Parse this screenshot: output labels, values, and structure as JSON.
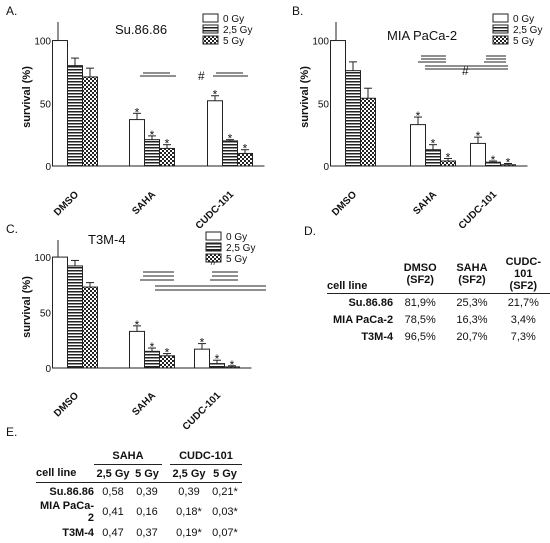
{
  "letters": {
    "a": "A.",
    "b": "B.",
    "c": "C.",
    "d": "D.",
    "e": "E."
  },
  "patterns": {
    "p0": "solid white",
    "p1": "horizontal stripes",
    "p2": "checkered"
  },
  "chart_data": [
    {
      "type": "bar",
      "title": "Su.86.86",
      "ylabel": "survival (%)",
      "xlabel": "",
      "ylim": [
        0,
        110
      ],
      "yticks": [
        "0",
        "50",
        "100"
      ],
      "categories": [
        "DMSO",
        "SAHA",
        "CUDC-101"
      ],
      "series": [
        {
          "name": "0 Gy",
          "values": [
            100,
            37,
            52
          ],
          "errors": [
            0,
            5,
            4
          ]
        },
        {
          "name": "2,5 Gy",
          "values": [
            80,
            21,
            20
          ],
          "errors": [
            6,
            3,
            1
          ]
        },
        {
          "name": "5 Gy",
          "values": [
            71,
            14,
            10
          ],
          "errors": [
            7,
            3,
            3
          ]
        }
      ],
      "stars": [
        {
          "cat": 1,
          "series": 0,
          "text": "*"
        },
        {
          "cat": 1,
          "series": 1,
          "text": "*"
        },
        {
          "cat": 1,
          "series": 2,
          "text": "*"
        },
        {
          "cat": 2,
          "series": 0,
          "text": "*"
        },
        {
          "cat": 2,
          "series": 1,
          "text": "*"
        },
        {
          "cat": 2,
          "series": 2,
          "text": "*"
        }
      ],
      "hash_symbol": "#",
      "brackets": [
        {
          "y": 75,
          "from": [
            1,
            0
          ],
          "to": [
            1,
            2
          ]
        },
        {
          "y": 75,
          "from": [
            2,
            0
          ],
          "to": [
            2,
            2
          ]
        },
        {
          "y": 72,
          "from": [
            1,
            0
          ],
          "to": [
            1,
            2
          ]
        },
        {
          "y": 72,
          "from": [
            2,
            0
          ],
          "to": [
            2,
            2
          ]
        }
      ],
      "legend_position": "top-right"
    },
    {
      "type": "bar",
      "title": "MIA PaCa-2",
      "ylabel": "survival (%)",
      "xlabel": "",
      "ylim": [
        0,
        110
      ],
      "yticks": [
        "0",
        "50",
        "100"
      ],
      "categories": [
        "DMSO",
        "SAHA",
        "CUDC-101"
      ],
      "series": [
        {
          "name": "0 Gy",
          "values": [
            100,
            33,
            18
          ],
          "errors": [
            0,
            6,
            5
          ]
        },
        {
          "name": "2,5 Gy",
          "values": [
            76,
            13,
            3
          ],
          "errors": [
            7,
            4,
            1
          ]
        },
        {
          "name": "5 Gy",
          "values": [
            54,
            4,
            1
          ],
          "errors": [
            8,
            2,
            1
          ]
        }
      ],
      "stars": [
        {
          "cat": 1,
          "series": 0,
          "text": "*"
        },
        {
          "cat": 1,
          "series": 1,
          "text": "*"
        },
        {
          "cat": 1,
          "series": 2,
          "text": "*"
        },
        {
          "cat": 2,
          "series": 0,
          "text": "*"
        },
        {
          "cat": 2,
          "series": 1,
          "text": "*"
        },
        {
          "cat": 2,
          "series": 2,
          "text": "*"
        }
      ],
      "hash_symbol": "#",
      "legend_position": "top-right"
    },
    {
      "type": "bar",
      "title": "T3M-4",
      "ylabel": "survival (%)",
      "xlabel": "",
      "ylim": [
        0,
        110
      ],
      "yticks": [
        "0",
        "50",
        "100"
      ],
      "categories": [
        "DMSO",
        "SAHA",
        "CUDC-101"
      ],
      "series": [
        {
          "name": "0 Gy",
          "values": [
            100,
            33,
            17
          ],
          "errors": [
            0,
            5,
            5
          ]
        },
        {
          "name": "2,5 Gy",
          "values": [
            92,
            15,
            4
          ],
          "errors": [
            5,
            3,
            3
          ]
        },
        {
          "name": "5 Gy",
          "values": [
            73,
            11,
            1
          ],
          "errors": [
            4,
            2,
            1
          ]
        }
      ],
      "stars": [
        {
          "cat": 1,
          "series": 0,
          "text": "*"
        },
        {
          "cat": 1,
          "series": 1,
          "text": "*"
        },
        {
          "cat": 1,
          "series": 2,
          "text": "*"
        },
        {
          "cat": 2,
          "series": 0,
          "text": "*"
        },
        {
          "cat": 2,
          "series": 1,
          "text": "*"
        },
        {
          "cat": 2,
          "series": 2,
          "text": "*"
        }
      ],
      "hash_symbol": "#",
      "legend_position": "top-right"
    },
    {
      "type": "table",
      "corner": "cell line",
      "columns": [
        {
          "line1": "DMSO",
          "line2": "(SF2)"
        },
        {
          "line1": "SAHA",
          "line2": "(SF2)"
        },
        {
          "line1": "CUDC-101",
          "line2": "(SF2)"
        }
      ],
      "rows": [
        {
          "label": "Su.86.86",
          "values": [
            "81,9%",
            "25,3%",
            "21,7%"
          ]
        },
        {
          "label": "MIA PaCa-2",
          "values": [
            "78,5%",
            "16,3%",
            "3,4%"
          ]
        },
        {
          "label": "T3M-4",
          "values": [
            "96,5%",
            "20,7%",
            "7,3%"
          ]
        }
      ]
    },
    {
      "type": "table",
      "corner": "cell line",
      "groups": [
        "SAHA",
        "CUDC-101"
      ],
      "subheaders": [
        "2,5 Gy",
        "5 Gy",
        "2,5 Gy",
        "5 Gy"
      ],
      "rows": [
        {
          "label": "Su.86.86",
          "values": [
            "0,58",
            "0,39",
            "0,39",
            "0,21*"
          ]
        },
        {
          "label": "MIA PaCa-2",
          "values": [
            "0,41",
            "0,16",
            "0,18*",
            "0,03*"
          ]
        },
        {
          "label": "T3M-4",
          "values": [
            "0,47",
            "0,37",
            "0,19*",
            "0,07*"
          ]
        }
      ]
    }
  ]
}
